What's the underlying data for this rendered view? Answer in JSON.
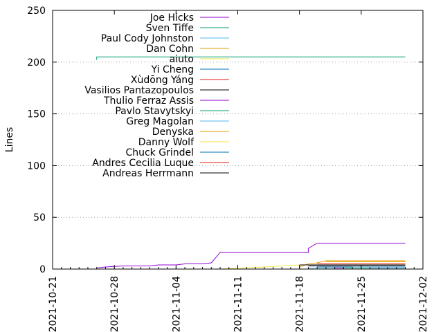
{
  "chart_data": {
    "type": "line",
    "title": "",
    "xlabel": "",
    "ylabel": "Lines",
    "x_type": "date",
    "xlim": [
      "2021-10-21",
      "2021-12-02"
    ],
    "ylim": [
      0,
      250
    ],
    "x_ticks": [
      "2021-10-21",
      "2021-10-28",
      "2021-11-04",
      "2021-11-11",
      "2021-11-18",
      "2021-11-25",
      "2021-12-02"
    ],
    "y_ticks": [
      0,
      50,
      100,
      150,
      200,
      250
    ],
    "grid": "horizontal dotted",
    "legend": "top-left",
    "series": [
      {
        "name": "Joe Hicks",
        "color": "#9400d3",
        "points": [
          [
            "2021-10-26",
            1
          ],
          [
            "2021-10-27",
            2
          ],
          [
            "2021-10-29",
            3
          ],
          [
            "2021-11-01",
            3
          ],
          [
            "2021-11-02",
            4
          ],
          [
            "2021-11-04",
            4
          ],
          [
            "2021-11-05",
            5
          ],
          [
            "2021-11-07",
            5
          ],
          [
            "2021-11-08",
            6
          ],
          [
            "2021-11-09",
            16
          ],
          [
            "2021-11-19",
            16
          ],
          [
            "2021-11-19",
            20
          ],
          [
            "2021-11-20",
            25
          ],
          [
            "2021-11-30",
            25
          ]
        ]
      },
      {
        "name": "Sven Tiffe",
        "color": "#009e73",
        "points": [
          [
            "2021-10-26",
            202
          ],
          [
            "2021-10-26",
            205
          ],
          [
            "2021-11-30",
            205
          ]
        ]
      },
      {
        "name": "Paul Cody Johnston",
        "color": "#56b4e9",
        "points": [
          [
            "2021-11-19",
            1
          ],
          [
            "2021-11-30",
            1
          ]
        ]
      },
      {
        "name": "Dan Cohn",
        "color": "#e69f00",
        "points": [
          [
            "2021-11-18",
            2
          ],
          [
            "2021-11-19",
            5
          ],
          [
            "2021-11-20",
            6
          ],
          [
            "2021-11-21",
            8
          ],
          [
            "2021-11-30",
            8
          ]
        ]
      },
      {
        "name": "aiuto",
        "color": "#f0e442",
        "points": [
          [
            "2021-11-09",
            0
          ],
          [
            "2021-11-14",
            2
          ],
          [
            "2021-11-18",
            4
          ],
          [
            "2021-11-30",
            4
          ]
        ]
      },
      {
        "name": "Yi Cheng",
        "color": "#0072b2",
        "points": [
          [
            "2021-11-20",
            2
          ],
          [
            "2021-11-30",
            2
          ]
        ]
      },
      {
        "name": "Xùdōng Yáng",
        "color": "#e51e10",
        "points": [
          [
            "2021-11-20",
            3
          ],
          [
            "2021-11-30",
            3
          ]
        ]
      },
      {
        "name": "Vasilios Pantazopoulos",
        "color": "#000000",
        "points": [
          [
            "2021-11-18",
            4
          ],
          [
            "2021-11-30",
            4
          ]
        ]
      },
      {
        "name": "Thulio Ferraz Assis",
        "color": "#9400d3",
        "points": [
          [
            "2021-11-22",
            1
          ],
          [
            "2021-11-30",
            1
          ]
        ]
      },
      {
        "name": "Pavlo Stavytskyi",
        "color": "#009e73",
        "points": [
          [
            "2021-11-23",
            1
          ],
          [
            "2021-11-30",
            1
          ]
        ]
      },
      {
        "name": "Greg Magolan",
        "color": "#56b4e9",
        "points": [
          [
            "2021-11-24",
            2
          ],
          [
            "2021-11-30",
            2
          ]
        ]
      },
      {
        "name": "Denyska",
        "color": "#e69f00",
        "points": [
          [
            "2021-11-21",
            7
          ],
          [
            "2021-11-30",
            7
          ]
        ]
      },
      {
        "name": "Danny Wolf",
        "color": "#f0e442",
        "points": [
          [
            "2021-11-25",
            3
          ],
          [
            "2021-11-30",
            3
          ]
        ]
      },
      {
        "name": "Chuck Grindel",
        "color": "#0072b2",
        "points": [
          [
            "2021-11-26",
            1
          ],
          [
            "2021-11-30",
            1
          ]
        ]
      },
      {
        "name": "Andres Cecilia Luque",
        "color": "#e51e10",
        "points": [
          [
            "2021-11-20",
            5
          ],
          [
            "2021-11-30",
            5
          ]
        ]
      },
      {
        "name": "Andreas Herrmann",
        "color": "#000000",
        "points": [
          [
            "2021-11-19",
            3
          ],
          [
            "2021-11-30",
            3
          ]
        ]
      }
    ]
  }
}
